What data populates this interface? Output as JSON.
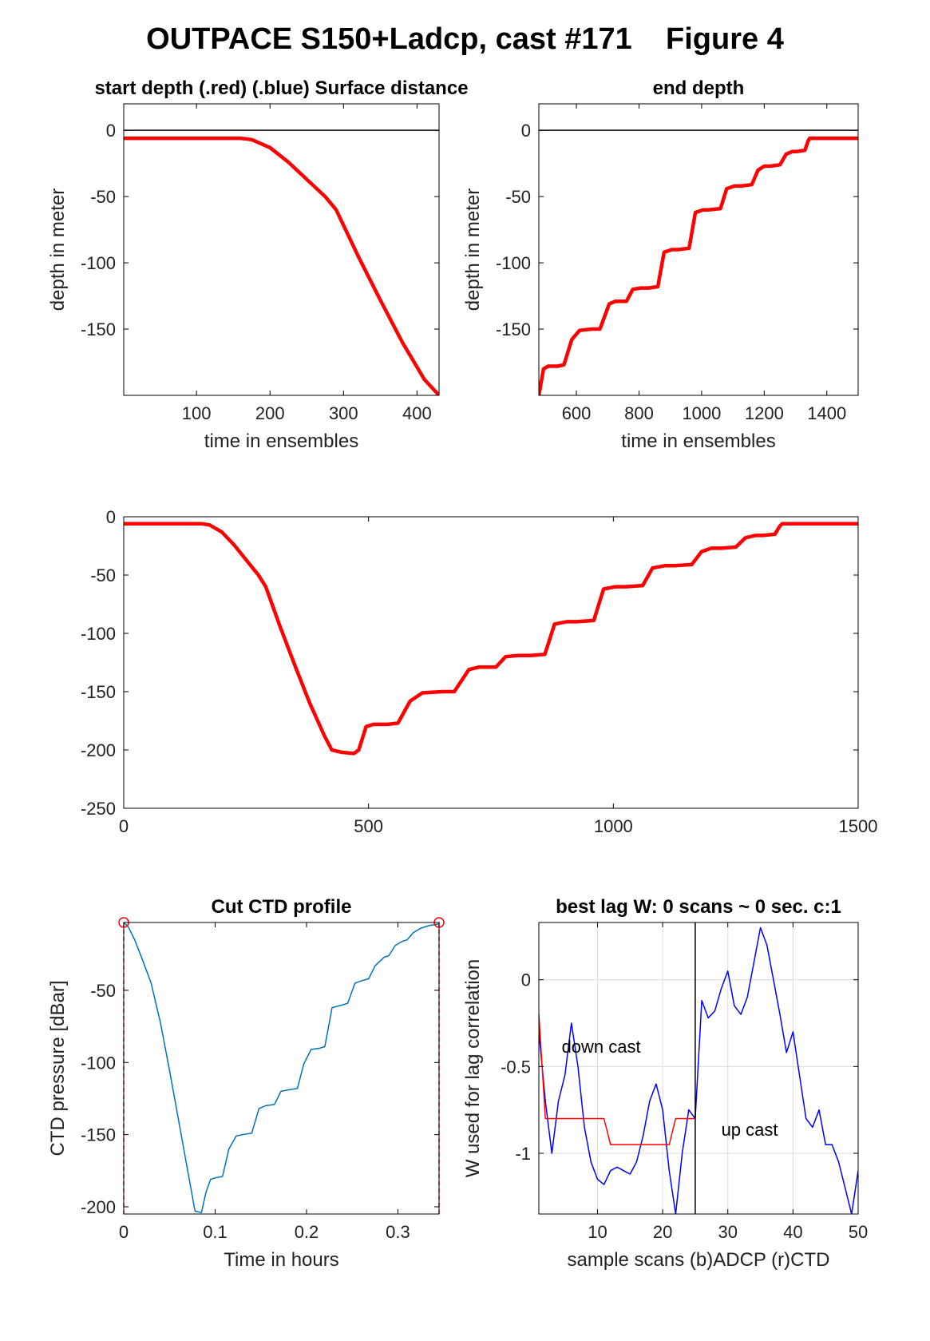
{
  "page_title": "OUTPACE S150+Ladcp, cast #171    Figure 4",
  "colors": {
    "red": "#ff0000",
    "blue": "#0000ff",
    "ctd_blue": "#0072bd",
    "grid": "#dcdcdc",
    "axis": "#000000"
  },
  "chart_data": [
    {
      "id": "start",
      "type": "line",
      "title": "start depth (.red) (.blue) Surface distance",
      "xlabel": "time in ensembles",
      "ylabel": "depth in meter",
      "xlim": [
        1,
        430
      ],
      "ylim": [
        -200,
        20
      ],
      "xticks": [
        100,
        200,
        300,
        400
      ],
      "yticks": [
        0,
        -50,
        -100,
        -150
      ],
      "reference_line": 0,
      "series": [
        {
          "color": "#ff0000",
          "x": [
            1,
            100,
            160,
            175,
            200,
            225,
            250,
            275,
            290,
            320,
            350,
            380,
            410,
            430
          ],
          "y": [
            -6,
            -6,
            -6,
            -7,
            -13,
            -24,
            -37,
            -50,
            -60,
            -95,
            -128,
            -160,
            -188,
            -200
          ]
        }
      ]
    },
    {
      "id": "end",
      "type": "line",
      "title": "end depth",
      "xlabel": "time in ensembles",
      "ylabel": "depth in meter",
      "xlim": [
        480,
        1500
      ],
      "ylim": [
        -200,
        20
      ],
      "xticks": [
        600,
        800,
        1000,
        1200,
        1400
      ],
      "yticks": [
        0,
        -50,
        -100,
        -150
      ],
      "reference_line": 0,
      "series": [
        {
          "color": "#ff0000",
          "x": [
            480,
            495,
            510,
            540,
            560,
            585,
            610,
            650,
            675,
            705,
            725,
            760,
            780,
            805,
            830,
            860,
            880,
            905,
            925,
            960,
            980,
            1005,
            1025,
            1060,
            1080,
            1105,
            1125,
            1160,
            1180,
            1200,
            1220,
            1250,
            1270,
            1290,
            1305,
            1330,
            1340,
            1345,
            1360,
            1400,
            1450,
            1500
          ],
          "y": [
            -200,
            -180,
            -178,
            -178,
            -177,
            -158,
            -151,
            -150,
            -150,
            -131,
            -129,
            -129,
            -120,
            -119,
            -119,
            -118,
            -92,
            -90,
            -90,
            -89,
            -62,
            -60,
            -60,
            -59,
            -44,
            -42,
            -42,
            -41,
            -30,
            -27,
            -27,
            -26,
            -18,
            -16,
            -16,
            -15,
            -8,
            -6,
            -6,
            -6,
            -6,
            -6
          ]
        }
      ]
    },
    {
      "id": "full",
      "type": "line",
      "title": "",
      "xlabel": "",
      "ylabel": "",
      "xlim": [
        0,
        1500
      ],
      "ylim": [
        -250,
        0
      ],
      "xticks": [
        0,
        500,
        1000,
        1500
      ],
      "yticks": [
        0,
        -50,
        -100,
        -150,
        -200,
        -250
      ],
      "series": [
        {
          "color": "#ff0000",
          "x": [
            0,
            160,
            175,
            200,
            225,
            250,
            275,
            290,
            320,
            350,
            380,
            410,
            425,
            445,
            470,
            480,
            495,
            510,
            540,
            560,
            585,
            610,
            650,
            675,
            705,
            725,
            760,
            780,
            805,
            830,
            860,
            880,
            905,
            925,
            960,
            980,
            1005,
            1025,
            1060,
            1080,
            1105,
            1125,
            1160,
            1180,
            1200,
            1220,
            1250,
            1270,
            1290,
            1305,
            1330,
            1340,
            1345,
            1360,
            1400,
            1500
          ],
          "y": [
            -6,
            -6,
            -7,
            -13,
            -24,
            -37,
            -50,
            -60,
            -95,
            -128,
            -160,
            -188,
            -200,
            -202,
            -203,
            -200,
            -180,
            -178,
            -178,
            -177,
            -158,
            -151,
            -150,
            -150,
            -131,
            -129,
            -129,
            -120,
            -119,
            -119,
            -118,
            -92,
            -90,
            -90,
            -89,
            -62,
            -60,
            -60,
            -59,
            -44,
            -42,
            -42,
            -41,
            -30,
            -27,
            -27,
            -26,
            -18,
            -16,
            -16,
            -15,
            -8,
            -6,
            -6,
            -6,
            -6
          ]
        }
      ]
    },
    {
      "id": "ctd",
      "type": "line",
      "title": "Cut CTD profile",
      "xlabel": "Time in hours",
      "ylabel": "CTD pressure [dBar]",
      "xlim": [
        0,
        0.345
      ],
      "ylim": [
        -205,
        -3
      ],
      "xticks": [
        0,
        0.1,
        0.2,
        0.3
      ],
      "yticks": [
        -50,
        -100,
        -150,
        -200
      ],
      "cut_points": [
        [
          0,
          -3
        ],
        [
          0.345,
          -3
        ]
      ],
      "series": [
        {
          "color": "#0072bd",
          "x": [
            0,
            0.005,
            0.012,
            0.02,
            0.03,
            0.04,
            0.05,
            0.06,
            0.07,
            0.078,
            0.085,
            0.09,
            0.095,
            0.1,
            0.108,
            0.115,
            0.123,
            0.13,
            0.14,
            0.148,
            0.155,
            0.165,
            0.172,
            0.18,
            0.19,
            0.197,
            0.205,
            0.215,
            0.22,
            0.228,
            0.24,
            0.245,
            0.253,
            0.262,
            0.268,
            0.275,
            0.285,
            0.29,
            0.297,
            0.305,
            0.31,
            0.317,
            0.325,
            0.33,
            0.335,
            0.345
          ],
          "y": [
            -3,
            -6,
            -15,
            -28,
            -45,
            -72,
            -105,
            -140,
            -175,
            -203,
            -204,
            -190,
            -181,
            -180,
            -179,
            -160,
            -151,
            -150,
            -149,
            -132,
            -130,
            -129,
            -120,
            -119,
            -118,
            -101,
            -91,
            -90,
            -89,
            -62,
            -60,
            -59,
            -45,
            -43,
            -42,
            -33,
            -27,
            -26,
            -19,
            -16,
            -15,
            -10,
            -7,
            -6,
            -5,
            -4
          ]
        }
      ]
    },
    {
      "id": "lag",
      "type": "line",
      "title": "best lag W: 0 scans ~ 0 sec.  c:1",
      "xlabel": "sample scans (b)ADCP (r)CTD",
      "ylabel": "W used for lag correlation",
      "xlim": [
        1,
        50
      ],
      "ylim": [
        -1.35,
        0.33
      ],
      "xticks": [
        10,
        20,
        30,
        40,
        50
      ],
      "yticks": [
        0,
        -0.5,
        -1
      ],
      "grid": true,
      "vertical_line": 25,
      "annotations": [
        {
          "text": "down cast",
          "x": 4.5,
          "y": -0.42
        },
        {
          "text": "up cast",
          "x": 29,
          "y": -0.9
        }
      ],
      "series": [
        {
          "color": "#0000ff",
          "x": [
            1,
            2,
            3,
            4,
            5,
            6,
            7,
            8,
            9,
            10,
            11,
            12,
            13,
            14,
            15,
            16,
            17,
            18,
            19,
            20,
            21,
            22,
            23,
            24,
            25,
            26,
            27,
            28,
            29,
            30,
            31,
            32,
            33,
            34,
            35,
            36,
            37,
            38,
            39,
            40,
            41,
            42,
            43,
            44,
            45,
            46,
            47,
            48,
            49,
            50
          ],
          "y": [
            -0.3,
            -0.7,
            -1.0,
            -0.7,
            -0.55,
            -0.25,
            -0.5,
            -0.85,
            -1.05,
            -1.15,
            -1.18,
            -1.1,
            -1.08,
            -1.1,
            -1.12,
            -1.05,
            -0.9,
            -0.7,
            -0.6,
            -0.75,
            -1.1,
            -1.35,
            -1.0,
            -0.75,
            -0.8,
            -0.12,
            -0.22,
            -0.18,
            -0.05,
            0.05,
            -0.15,
            -0.2,
            -0.1,
            0.1,
            0.3,
            0.2,
            0.0,
            -0.2,
            -0.42,
            -0.3,
            -0.55,
            -0.8,
            -0.85,
            -0.75,
            -0.95,
            -0.95,
            -1.05,
            -1.2,
            -1.35,
            -1.1
          ]
        },
        {
          "color": "#ff0000",
          "x": [
            1,
            2,
            3,
            4,
            5,
            6,
            7,
            8,
            9,
            10,
            11,
            12,
            13,
            14,
            15,
            16,
            17,
            18,
            19,
            20,
            21,
            22,
            23,
            24,
            25
          ],
          "y": [
            -0.2,
            -0.8,
            -0.8,
            -0.8,
            -0.8,
            -0.8,
            -0.8,
            -0.8,
            -0.8,
            -0.8,
            -0.8,
            -0.95,
            -0.95,
            -0.95,
            -0.95,
            -0.95,
            -0.95,
            -0.95,
            -0.95,
            -0.95,
            -0.95,
            -0.8,
            -0.8,
            -0.8,
            -0.8
          ]
        }
      ]
    }
  ]
}
